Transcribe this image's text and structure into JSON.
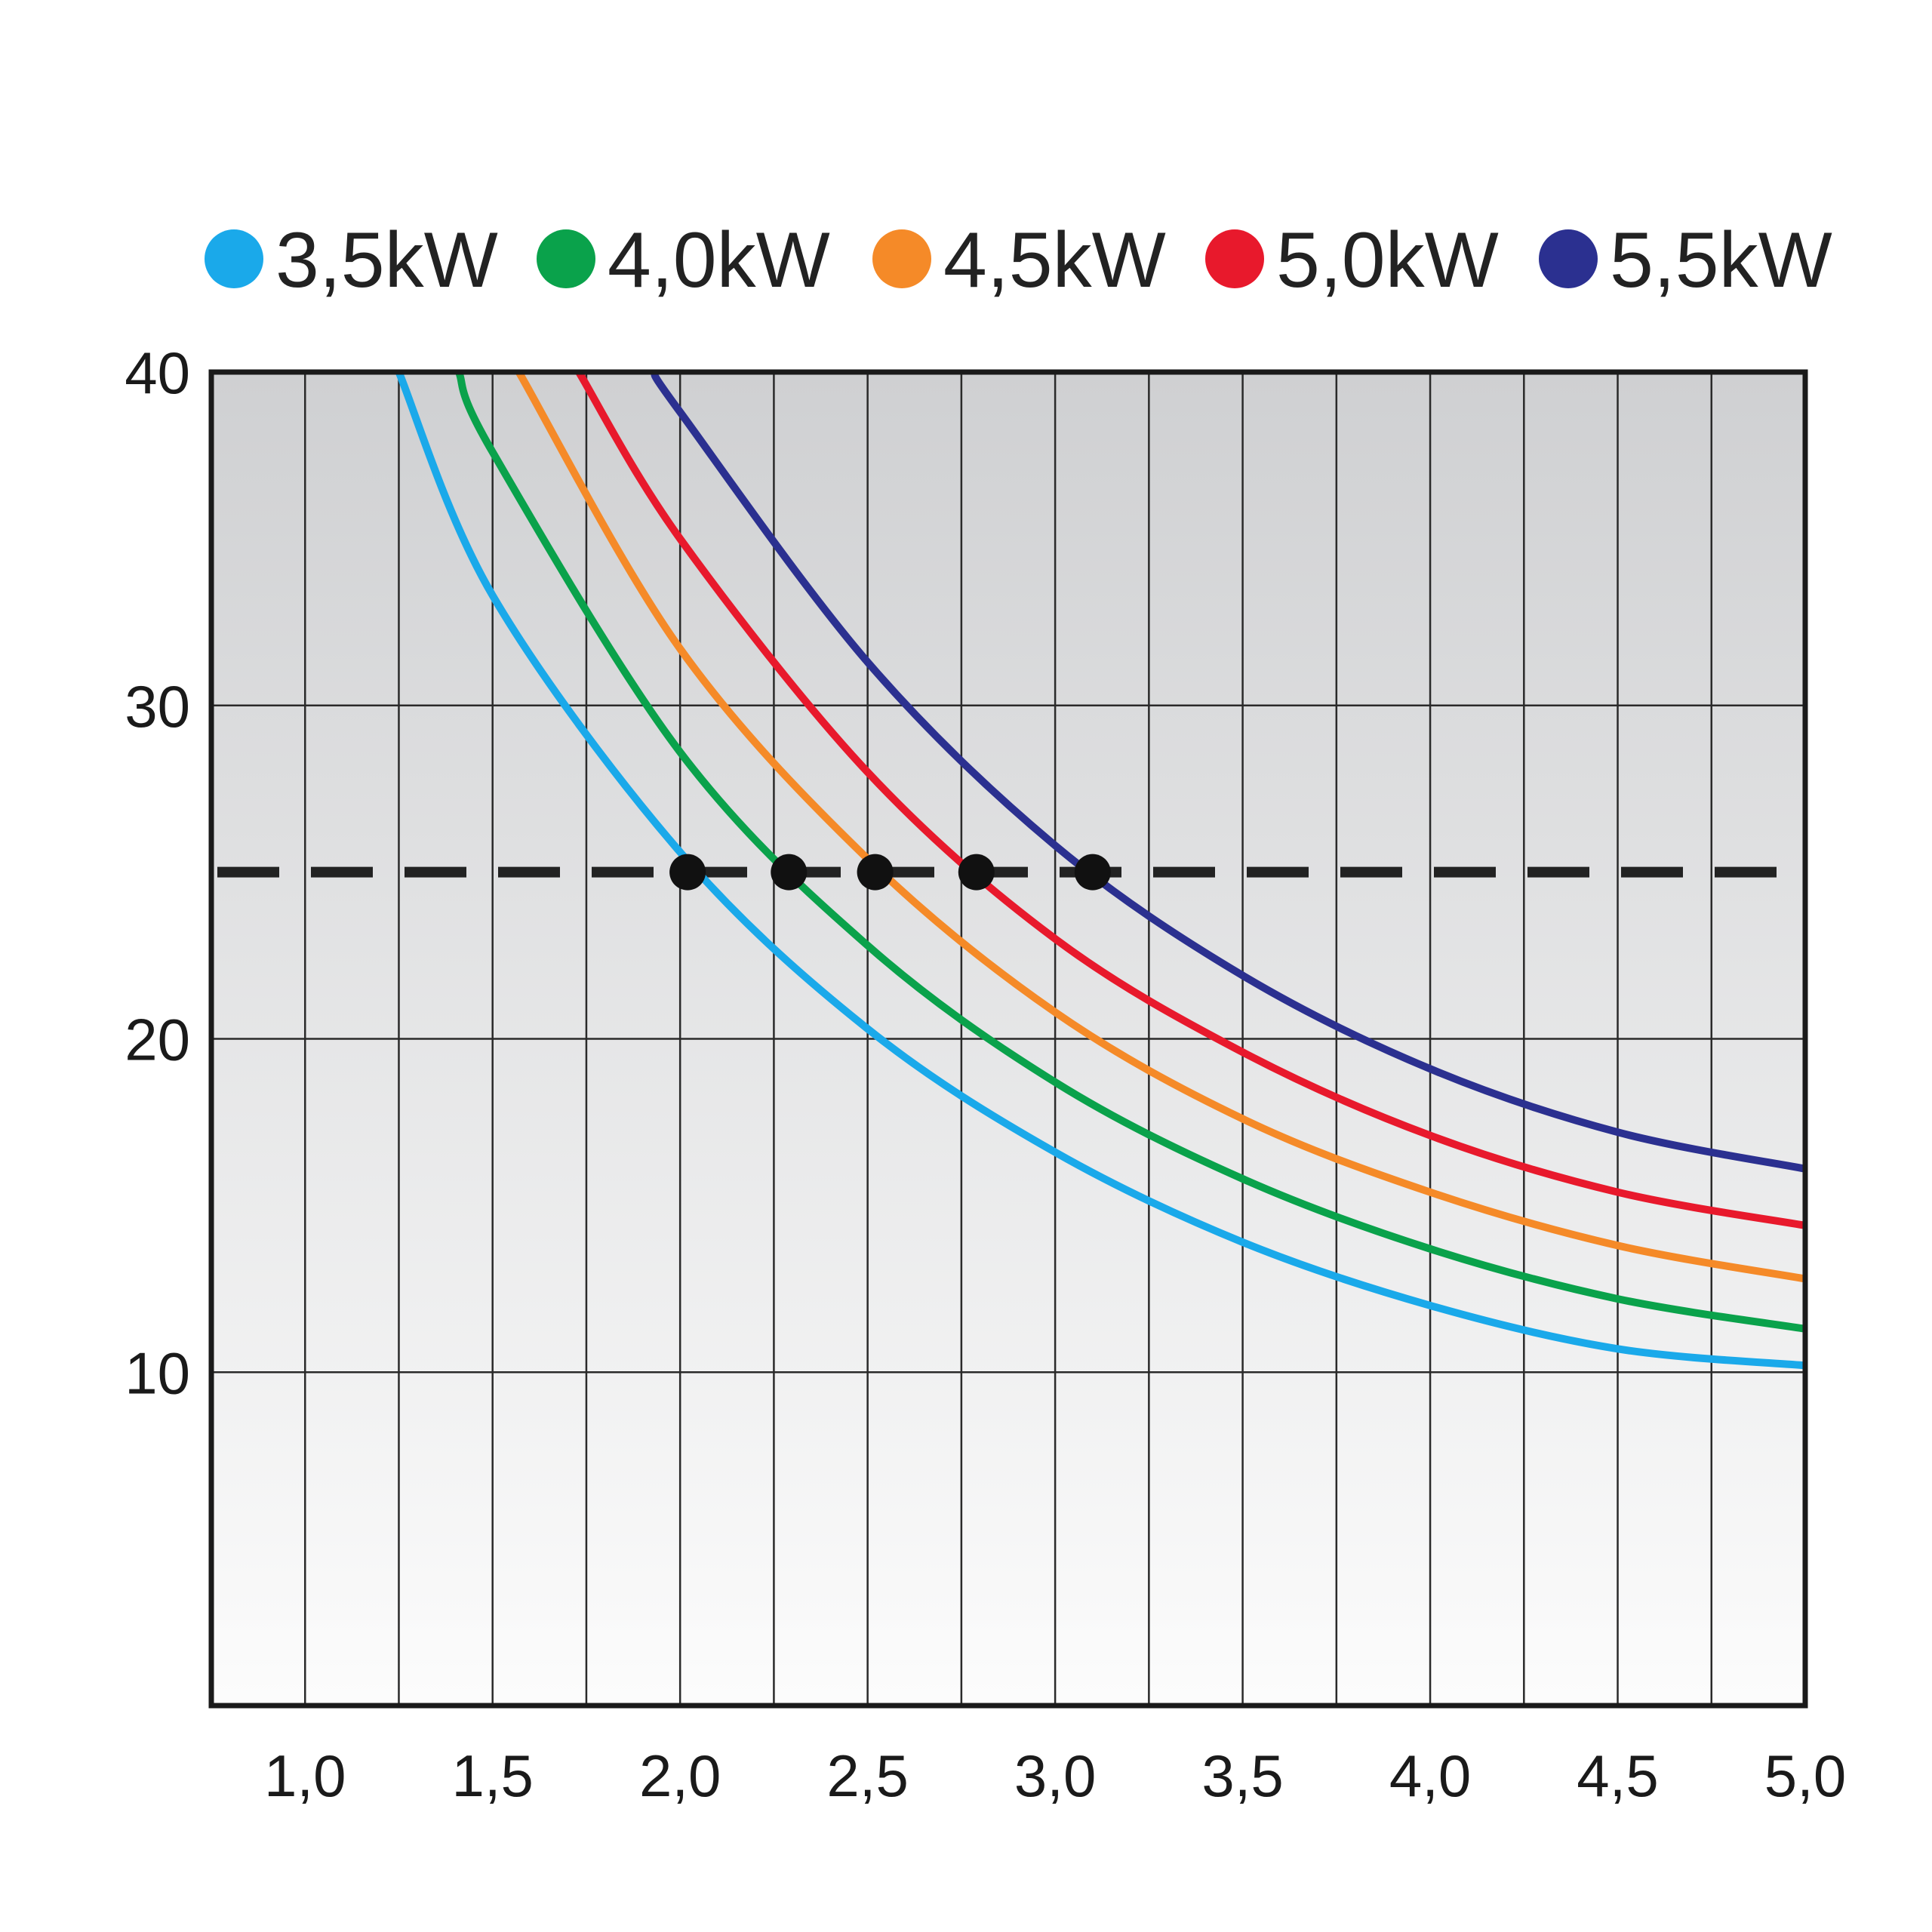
{
  "chart_data": {
    "type": "line",
    "title": "",
    "xlabel": "",
    "ylabel": "",
    "xlim": [
      0.75,
      5.0
    ],
    "ylim": [
      0,
      40
    ],
    "x_ticks": [
      1.0,
      1.5,
      2.0,
      2.5,
      3.0,
      3.5,
      4.0,
      4.5,
      5.0
    ],
    "x_tick_labels": [
      "1,0",
      "1,5",
      "2,0",
      "2,5",
      "3,0",
      "3,5",
      "4,0",
      "4,5",
      "5,0"
    ],
    "y_ticks": [
      10,
      20,
      30,
      40
    ],
    "y_tick_labels": [
      "10",
      "20",
      "30",
      "40"
    ],
    "grid": true,
    "legend_position": "top",
    "reference_line": {
      "y": 25,
      "style": "dashed",
      "color": "#222222"
    },
    "series": [
      {
        "name": "3,5kW",
        "color": "#1aa9ea",
        "x": [
          1.25,
          1.5,
          2.0,
          2.5,
          3.0,
          3.5,
          4.0,
          4.5,
          5.0
        ],
        "y": [
          40.0,
          33.3,
          25.6,
          20.3,
          16.6,
          13.9,
          12.0,
          10.7,
          10.2
        ],
        "marker": {
          "x": 2.02,
          "y": 25
        }
      },
      {
        "name": "4,0kW",
        "color": "#0aa24b",
        "x": [
          1.41,
          1.5,
          2.0,
          2.5,
          3.0,
          3.5,
          4.0,
          4.5,
          5.0
        ],
        "y": [
          40.0,
          37.6,
          28.6,
          22.8,
          18.7,
          15.8,
          13.7,
          12.2,
          11.3
        ],
        "marker": {
          "x": 2.29,
          "y": 25
        }
      },
      {
        "name": "4,5kW",
        "color": "#f58a28",
        "x": [
          1.57,
          2.0,
          2.5,
          3.0,
          3.5,
          4.0,
          4.5,
          5.0
        ],
        "y": [
          40.0,
          31.7,
          25.4,
          20.8,
          17.6,
          15.4,
          13.8,
          12.8
        ],
        "marker": {
          "x": 2.52,
          "y": 25
        }
      },
      {
        "name": "5,0kW",
        "color": "#e8192c",
        "x": [
          1.73,
          2.0,
          2.5,
          3.0,
          3.5,
          4.0,
          4.5,
          5.0
        ],
        "y": [
          40.0,
          35.0,
          28.0,
          23.0,
          19.6,
          17.1,
          15.4,
          14.4
        ],
        "marker": {
          "x": 2.79,
          "y": 25
        }
      },
      {
        "name": "5,5kW",
        "color": "#2b3090",
        "x": [
          1.93,
          2.0,
          2.5,
          3.0,
          3.5,
          4.0,
          4.5,
          5.0
        ],
        "y": [
          40.0,
          38.8,
          31.3,
          25.8,
          21.9,
          19.1,
          17.2,
          16.1
        ],
        "marker": {
          "x": 3.1,
          "y": 25
        }
      }
    ]
  }
}
